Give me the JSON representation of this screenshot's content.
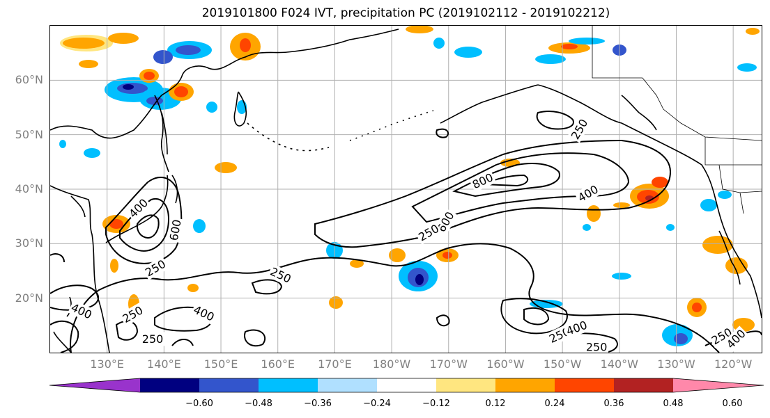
{
  "title": "2019101800 F024 IVT, precipitation PC (2019102112 - 2019102212)",
  "map": {
    "projection": "PlateCarree",
    "extent_deg": {
      "lon_min": 120,
      "lon_max": 245,
      "lat_min": 10,
      "lat_max": 70
    },
    "lat_labels": [
      {
        "lat": 60,
        "text": "60°N"
      },
      {
        "lat": 50,
        "text": "50°N"
      },
      {
        "lat": 40,
        "text": "40°N"
      },
      {
        "lat": 30,
        "text": "30°N"
      },
      {
        "lat": 20,
        "text": "20°N"
      }
    ],
    "lon_labels": [
      {
        "lon": 130,
        "text": "130°E"
      },
      {
        "lon": 140,
        "text": "140°E"
      },
      {
        "lon": 150,
        "text": "150°E"
      },
      {
        "lon": 160,
        "text": "160°E"
      },
      {
        "lon": 170,
        "text": "170°E"
      },
      {
        "lon": 180,
        "text": "180°W"
      },
      {
        "lon": 190,
        "text": "170°W"
      },
      {
        "lon": 200,
        "text": "160°W"
      },
      {
        "lon": 210,
        "text": "150°W"
      },
      {
        "lon": 220,
        "text": "140°W"
      },
      {
        "lon": 230,
        "text": "130°W"
      },
      {
        "lon": 240,
        "text": "120°W"
      }
    ],
    "gridlines": true,
    "grid_color": "#b0b0b0",
    "label_color": "#808080",
    "contour_labels": [
      {
        "text": "800",
        "lon": 196,
        "lat": 41.5,
        "rot": -25
      },
      {
        "text": "600",
        "lon": 189.5,
        "lat": 34,
        "rot": -60
      },
      {
        "text": "400",
        "lon": 214.5,
        "lat": 39.2,
        "rot": -30
      },
      {
        "text": "250",
        "lon": 186.5,
        "lat": 32,
        "rot": -30
      },
      {
        "text": "250",
        "lon": 213,
        "lat": 51,
        "rot": -60
      },
      {
        "text": "600",
        "lon": 142,
        "lat": 32.5,
        "rot": -80
      },
      {
        "text": "400",
        "lon": 135.5,
        "lat": 36.5,
        "rot": -45
      },
      {
        "text": "250",
        "lon": 138.5,
        "lat": 25.5,
        "rot": -30
      },
      {
        "text": "250",
        "lon": 160.5,
        "lat": 24.2,
        "rot": 25
      },
      {
        "text": "400",
        "lon": 147,
        "lat": 17.2,
        "rot": 25
      },
      {
        "text": "250",
        "lon": 134.5,
        "lat": 17,
        "rot": -30
      },
      {
        "text": "250",
        "lon": 138,
        "lat": 12.5,
        "rot": 0
      },
      {
        "text": "400",
        "lon": 125.5,
        "lat": 17.6,
        "rot": 25
      },
      {
        "text": "250",
        "lon": 209.5,
        "lat": 13.2,
        "rot": -25
      },
      {
        "text": "400",
        "lon": 212.5,
        "lat": 14.5,
        "rot": -20
      },
      {
        "text": "250",
        "lon": 216,
        "lat": 11,
        "rot": 0
      },
      {
        "text": "250",
        "lon": 238,
        "lat": 13,
        "rot": -30
      },
      {
        "text": "400",
        "lon": 240.5,
        "lat": 12.5,
        "rot": -45
      }
    ]
  },
  "colorbar": {
    "extend": "both",
    "bounds": [
      -0.72,
      -0.6,
      -0.48,
      -0.36,
      -0.24,
      -0.12,
      0.12,
      0.24,
      0.36,
      0.48,
      0.6,
      0.72
    ],
    "colors": [
      "#9933cc",
      "#000080",
      "#3355cc",
      "#00bfff",
      "#b0e0ff",
      "#ffffff",
      "#ffe680",
      "#ffa500",
      "#ff4500",
      "#b22222",
      "#ff88aa"
    ],
    "tick_labels": [
      "−0.60",
      "−0.48",
      "−0.36",
      "−0.24",
      "−0.12",
      "0.12",
      "0.24",
      "0.36",
      "0.48",
      "0.60"
    ]
  }
}
